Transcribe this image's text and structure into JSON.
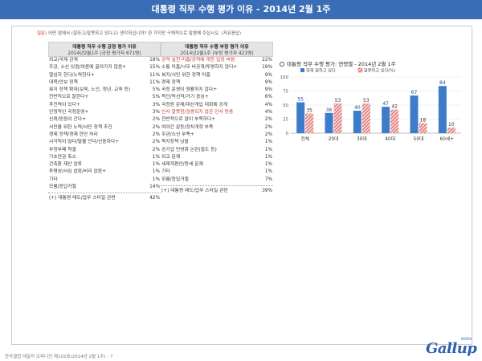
{
  "banner": {
    "title": "대통령 직무 수행 평가 이유 - 2014년 2월 1주"
  },
  "question": {
    "prefix": "질문)",
    "text": " 어떤 점에서 (잘하고/잘못하고 있다고) 생각하십니까? 한 가지만 구체적으로 말씀해 주십시오. (자유응답)"
  },
  "positive": {
    "title": "대통령 직무 수행 긍정 평가 이유",
    "subtitle": "2014년2월1주 (긍정 평가자 671명)",
    "rows": [
      {
        "label": "외교/국제 관계",
        "value": "18%"
      },
      {
        "label": "주관, 소신 있음/여론에 끌려가지 않음+",
        "value": "15%"
      },
      {
        "label": "열심히 한다/노력한다+",
        "value": "11%"
      },
      {
        "label": "대북/안보 정책",
        "value": "11%"
      },
      {
        "label": "복지 정책 확대(보육, 노인, 청년, 교육 등)",
        "value": "5%"
      },
      {
        "label": "전반적으로 잘한다+",
        "value": "5%"
      },
      {
        "label": "추진력이 있다+",
        "value": "3%"
      },
      {
        "label": "안정적인 국정운영+",
        "value": "3%"
      },
      {
        "label": "신뢰/믿음이 간다+",
        "value": "2%"
      },
      {
        "label": "서민을 위한 노력/서민 정책 추진",
        "value": "2%"
      },
      {
        "label": "경제 정책/경제 현안 처리",
        "value": "2%"
      },
      {
        "label": "시각칙이 많다/말을 안다/신중하다+",
        "value": "2%"
      },
      {
        "label": "부정부패 척결",
        "value": "2%"
      },
      {
        "label": "기초연금 축소",
        "value": "1%"
      },
      {
        "label": "건축환 재산 압류",
        "value": "1%"
      },
      {
        "label": "투명성/사심 없음/비리 없음+",
        "value": "1%"
      },
      {
        "label": "기타",
        "value": "1%"
      },
      {
        "label": "모름/응답거절",
        "value": "14%"
      }
    ],
    "foot": {
      "label": "(+) 대통령 태도/업무 스타일 관련",
      "value": "42%"
    }
  },
  "negative": {
    "title": "대통령 직무 수행 부정 평가 이유",
    "subtitle": "2014년2월1주 (부정 평가자 421명)",
    "rows": [
      {
        "label": "공약 실천 미흡/공약에 대한 입장 바뀜",
        "value": "22%",
        "highlight": true
      },
      {
        "label": "소통 미흡/너무 비공개/투명하지 않다+",
        "value": "19%",
        "highlight": false
      },
      {
        "label": "복지/서민 위한 정책 미흡",
        "value": "9%",
        "highlight": false
      },
      {
        "label": "경제 정책",
        "value": "9%",
        "highlight": false
      },
      {
        "label": "국정 운영이 원활하지 않다+",
        "value": "9%",
        "highlight": false
      },
      {
        "label": "독단/독선적/가기 중심+",
        "value": "6%",
        "highlight": false
      },
      {
        "label": "국정원 문제/대선개입 대화록 공개",
        "value": "4%",
        "highlight": false
      },
      {
        "label": "인사 잘못함/검증되지 않은 인사 등용",
        "value": "4%",
        "highlight": true
      },
      {
        "label": "전반적으로 많이 부족하다+",
        "value": "2%",
        "highlight": false
      },
      {
        "label": "여야간 갈등/정치개혁 부족",
        "value": "2%",
        "highlight": false
      },
      {
        "label": "주관/소신 부족+",
        "value": "2%",
        "highlight": false
      },
      {
        "label": "북지정책 남발",
        "value": "1%",
        "highlight": false
      },
      {
        "label": "공기업 민영화 논란(철도 등)",
        "value": "1%",
        "highlight": false
      },
      {
        "label": "외교 문제",
        "value": "1%",
        "highlight": false
      },
      {
        "label": "세제개편안/증세 문제",
        "value": "1%",
        "highlight": false
      },
      {
        "label": "기타",
        "value": "1%",
        "highlight": false
      },
      {
        "label": "모름/응답거절",
        "value": "7%",
        "highlight": false
      }
    ],
    "foot": {
      "label": "(+) 대통령 태도/업무 스타일 관련",
      "value": "39%"
    }
  },
  "chart_data": {
    "type": "bar",
    "title": "대통령 직무 수행 평가: 연령별 - 2014년 2월 1주",
    "categories": [
      "전체",
      "20대",
      "30대",
      "40대",
      "50대",
      "60세+"
    ],
    "series": [
      {
        "name": "현재 잘하고 있다",
        "values": [
          55,
          36,
          40,
          47,
          67,
          84
        ],
        "color": "#3d7cc9"
      },
      {
        "name": "잘못하고 있다(%)",
        "values": [
          35,
          53,
          53,
          42,
          18,
          10
        ],
        "color": "#d94040"
      }
    ],
    "ylim": [
      0,
      100
    ],
    "yticks": [
      0,
      25,
      50,
      75,
      100
    ],
    "grid": true,
    "legend": "top"
  },
  "footer": {
    "note": "한국갤럽 데일리 오피니언 제102호(2014년 2월 1주) - 7"
  },
  "logo": {
    "text": "Gallup",
    "sup": "KOREA"
  }
}
